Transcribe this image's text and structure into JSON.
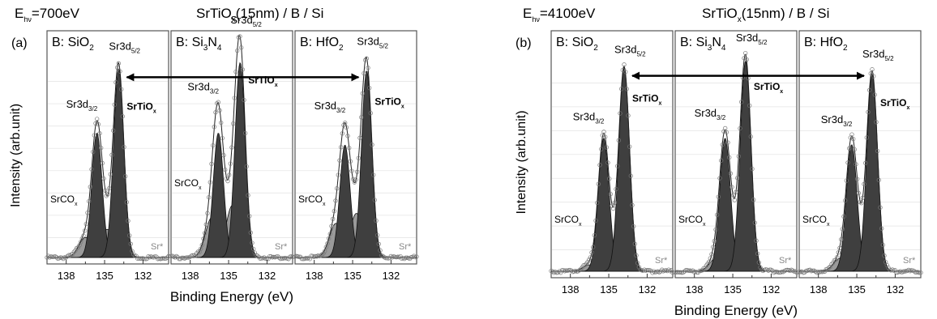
{
  "figure": {
    "panels": [
      {
        "letter": "(a)",
        "energy": "E",
        "energy_sub": "hν",
        "energy_val": "=700eV",
        "sample_pre": "SrTiO",
        "sample_sub": "x",
        "sample_post": "(15nm) / B / Si",
        "ylabel": "Intensity (arb.unit)",
        "xlabel": "Binding Energy (eV)",
        "xticks": [
          "138",
          "135",
          "132"
        ],
        "subplots": [
          {
            "label_pre": "B: SiO",
            "label_sub": "2",
            "label_post": ""
          },
          {
            "label_pre": "B: Si",
            "label_sub": "3",
            "label_post": "N",
            "label_sub2": "4"
          },
          {
            "label_pre": "B: HfO",
            "label_sub": "2",
            "label_post": ""
          }
        ]
      },
      {
        "letter": "(b)",
        "energy": "E",
        "energy_sub": "hν",
        "energy_val": "=4100eV",
        "sample_pre": "SrTiO",
        "sample_sub": "x",
        "sample_post": "(15nm) / B / Si",
        "ylabel": "Intensity (arb.unit)",
        "xlabel": "Binding Energy (eV)",
        "xticks": [
          "138",
          "135",
          "132"
        ],
        "subplots": [
          {
            "label_pre": "B: SiO",
            "label_sub": "2",
            "label_post": ""
          },
          {
            "label_pre": "B: Si",
            "label_sub": "3",
            "label_post": "N",
            "label_sub2": "4"
          },
          {
            "label_pre": "B: HfO",
            "label_sub": "2",
            "label_post": ""
          }
        ]
      }
    ],
    "annotations": {
      "sr3d32": "Sr3d",
      "sr3d32_sub": "3/2",
      "sr3d52": "Sr3d",
      "sr3d52_sub": "5/2",
      "srtio": "SrTiO",
      "srtio_sub": "x",
      "srco": "SrCO",
      "srco_sub": "x",
      "srstar": "Sr*"
    }
  },
  "chart_data": [
    {
      "type": "line",
      "panel": "(a)",
      "title": "",
      "xlabel": "Binding Energy (eV)",
      "ylabel": "Intensity (arb.unit)",
      "xlim": [
        139.5,
        130
      ],
      "x_reversed": true,
      "xticks": [
        138,
        135,
        132
      ],
      "ylim": [
        0,
        1
      ],
      "subplots": [
        {
          "name": "B: SiO2",
          "peaks": [
            {
              "component": "SrTiOx Sr3d5/2",
              "center": 133.9,
              "height": 0.94,
              "fwhm": 0.95
            },
            {
              "component": "SrTiOx Sr3d3/2",
              "center": 135.6,
              "height": 0.62,
              "fwhm": 0.95
            },
            {
              "component": "SrCOx",
              "center": 136.5,
              "height": 0.1,
              "fwhm": 1.2
            },
            {
              "component": "SrCOx",
              "center": 134.8,
              "height": 0.14,
              "fwhm": 1.2
            }
          ]
        },
        {
          "name": "B: Si3N4",
          "peaks": [
            {
              "component": "SrTiOx Sr3d5/2",
              "center": 134.1,
              "height": 0.97,
              "fwhm": 0.95
            },
            {
              "component": "SrTiOx Sr3d3/2",
              "center": 135.8,
              "height": 0.62,
              "fwhm": 0.95
            },
            {
              "component": "SrCOx",
              "center": 136.3,
              "height": 0.2,
              "fwhm": 1.2
            },
            {
              "component": "SrCOx",
              "center": 134.7,
              "height": 0.26,
              "fwhm": 1.2
            }
          ]
        },
        {
          "name": "B: HfO2",
          "peaks": [
            {
              "component": "SrTiOx Sr3d5/2",
              "center": 133.9,
              "height": 0.93,
              "fwhm": 0.95
            },
            {
              "component": "SrTiOx Sr3d3/2",
              "center": 135.6,
              "height": 0.56,
              "fwhm": 0.95
            },
            {
              "component": "SrCOx",
              "center": 136.3,
              "height": 0.17,
              "fwhm": 1.2
            },
            {
              "component": "SrCOx",
              "center": 134.7,
              "height": 0.22,
              "fwhm": 1.2
            }
          ]
        }
      ]
    },
    {
      "type": "line",
      "panel": "(b)",
      "title": "",
      "xlabel": "Binding Energy (eV)",
      "ylabel": "Intensity (arb.unit)",
      "xlim": [
        139.5,
        130
      ],
      "x_reversed": true,
      "xticks": [
        138,
        135,
        132
      ],
      "ylim": [
        0,
        1
      ],
      "subplots": [
        {
          "name": "B: SiO2",
          "peaks": [
            {
              "component": "SrTiOx Sr3d5/2",
              "center": 133.8,
              "height": 0.95,
              "fwhm": 1.0
            },
            {
              "component": "SrTiOx Sr3d3/2",
              "center": 135.4,
              "height": 0.62,
              "fwhm": 1.0
            },
            {
              "component": "SrCOx",
              "center": 136.5,
              "height": 0.03,
              "fwhm": 1.2
            },
            {
              "component": "SrCOx",
              "center": 134.8,
              "height": 0.04,
              "fwhm": 1.2
            }
          ]
        },
        {
          "name": "B: Si3N4",
          "peaks": [
            {
              "component": "SrTiOx Sr3d5/2",
              "center": 134.0,
              "height": 0.98,
              "fwhm": 1.0
            },
            {
              "component": "SrTiOx Sr3d3/2",
              "center": 135.6,
              "height": 0.62,
              "fwhm": 1.0
            },
            {
              "component": "SrCOx",
              "center": 136.3,
              "height": 0.06,
              "fwhm": 1.2
            },
            {
              "component": "SrCOx",
              "center": 134.7,
              "height": 0.08,
              "fwhm": 1.2
            }
          ]
        },
        {
          "name": "B: HfO2",
          "peaks": [
            {
              "component": "SrTiOx Sr3d5/2",
              "center": 133.8,
              "height": 0.92,
              "fwhm": 1.0
            },
            {
              "component": "SrTiOx Sr3d3/2",
              "center": 135.4,
              "height": 0.59,
              "fwhm": 1.0
            },
            {
              "component": "SrCOx",
              "center": 136.3,
              "height": 0.06,
              "fwhm": 1.2
            },
            {
              "component": "SrCOx",
              "center": 134.7,
              "height": 0.07,
              "fwhm": 1.2
            }
          ]
        }
      ]
    }
  ]
}
